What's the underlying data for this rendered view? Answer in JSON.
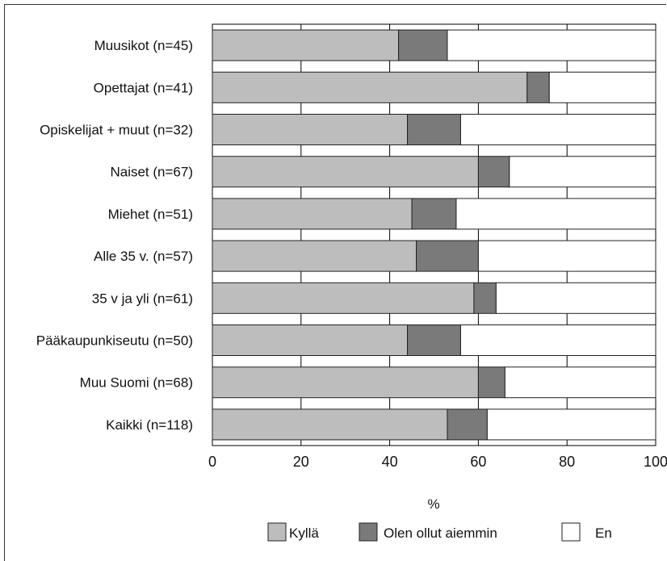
{
  "chart_data": {
    "type": "bar",
    "orientation": "horizontal",
    "stacked": true,
    "categories": [
      "Muusikot (n=45)",
      "Opettajat (n=41)",
      "Opiskelijat + muut (n=32)",
      "Naiset (n=67)",
      "Miehet (n=51)",
      "Alle 35 v. (n=57)",
      "35 v ja yli (n=61)",
      "Pääkaupunkiseutu (n=50)",
      "Muu Suomi (n=68)",
      "Kaikki (n=118)"
    ],
    "series": [
      {
        "name": "Kyllä",
        "color": "#bdbdbd",
        "values": [
          42,
          71,
          44,
          60,
          45,
          46,
          59,
          44,
          60,
          53
        ]
      },
      {
        "name": "Olen ollut aiemmin",
        "color": "#7a7a7a",
        "values": [
          11,
          5,
          12,
          7,
          10,
          14,
          5,
          12,
          6,
          9
        ]
      },
      {
        "name": "En",
        "color": "#ffffff",
        "values": [
          47,
          24,
          44,
          33,
          45,
          40,
          36,
          44,
          34,
          38
        ]
      }
    ],
    "xlabel": "%",
    "xlim": [
      0,
      100
    ],
    "xticks": [
      "0",
      "20",
      "40",
      "60",
      "80",
      "100"
    ],
    "grid": true,
    "legend_position": "bottom"
  }
}
